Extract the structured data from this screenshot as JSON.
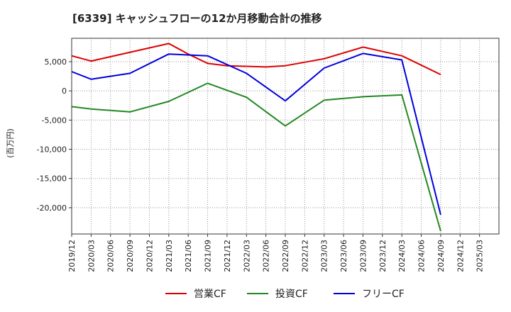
{
  "chart_data": {
    "type": "line",
    "title": "[6339]  キャッシュフローの12か月移動合計の推移",
    "ylabel": "(百万円)",
    "xlabel": "",
    "ylim": [
      -24500,
      9000
    ],
    "yticks": [
      5000,
      0,
      -5000,
      -10000,
      -15000,
      -20000
    ],
    "ytick_labels": [
      "5,000",
      "0",
      "-5,000",
      "-10,000",
      "-15,000",
      "-20,000"
    ],
    "x_start": "2019/12",
    "x_step_months": 1,
    "x_end_index": 66,
    "xtick_labels": [
      "2019/12",
      "2020/03",
      "2020/06",
      "2020/09",
      "2020/12",
      "2021/03",
      "2021/06",
      "2021/09",
      "2021/12",
      "2022/03",
      "2022/06",
      "2022/09",
      "2022/12",
      "2023/03",
      "2023/06",
      "2023/09",
      "2023/12",
      "2024/03",
      "2024/06",
      "2024/09",
      "2024/12",
      "2025/03"
    ],
    "series": [
      {
        "name": "営業CF",
        "color": "#dd0000",
        "x_index": [
          0,
          3,
          15,
          18,
          21,
          24,
          30,
          33,
          39,
          45,
          51,
          57
        ],
        "values": [
          6000,
          5100,
          8100,
          6300,
          4700,
          4300,
          4100,
          4300,
          5500,
          7500,
          6000,
          2800
        ]
      },
      {
        "name": "投資CF",
        "color": "#228822",
        "x_index": [
          0,
          3,
          9,
          15,
          21,
          27,
          33,
          39,
          45,
          51,
          57
        ],
        "values": [
          -2700,
          -3100,
          -3600,
          -1800,
          1300,
          -1100,
          -6000,
          -1600,
          -1000,
          -700,
          -24000
        ]
      },
      {
        "name": "フリーCF",
        "color": "#0000dd",
        "x_index": [
          0,
          3,
          9,
          15,
          21,
          27,
          33,
          39,
          45,
          51,
          57
        ],
        "values": [
          3300,
          2000,
          3000,
          6300,
          6000,
          3000,
          -1700,
          3900,
          6400,
          5300,
          -21200
        ]
      }
    ],
    "legend_position": "bottom-center",
    "grid": true
  }
}
